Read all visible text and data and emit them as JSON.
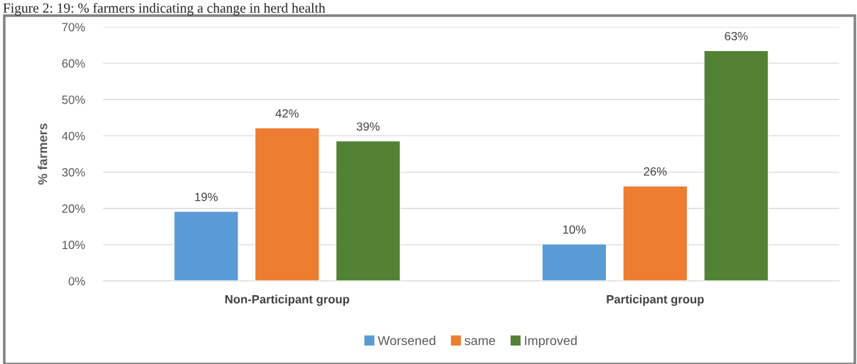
{
  "chart_data": {
    "type": "bar",
    "title": "Figure 2: 19: % farmers indicating a change in herd health",
    "ylabel": "% farmers",
    "categories": [
      "Non-Participant group",
      "Participant group"
    ],
    "series": [
      {
        "name": "Worsened",
        "color": "#5b9bd5",
        "values": [
          19.2,
          10.2
        ],
        "value_labels": [
          "19%",
          "10%"
        ]
      },
      {
        "name": "same",
        "color": "#ed7d31",
        "values": [
          42.2,
          26.2
        ],
        "value_labels": [
          "42%",
          "26%"
        ]
      },
      {
        "name": "Improved",
        "color": "#548235",
        "values": [
          38.6,
          63.5
        ],
        "value_labels": [
          "39%",
          "63%"
        ]
      }
    ],
    "ylim": [
      0,
      70
    ],
    "yticks": [
      {
        "value": 0,
        "label": "0%"
      },
      {
        "value": 10,
        "label": "10%"
      },
      {
        "value": 20,
        "label": "20%"
      },
      {
        "value": 30,
        "label": "30%"
      },
      {
        "value": 40,
        "label": "40%"
      },
      {
        "value": 50,
        "label": "50%"
      },
      {
        "value": 60,
        "label": "60%"
      },
      {
        "value": 70,
        "label": "70%"
      }
    ],
    "grid": "y",
    "legend": "bottom"
  }
}
